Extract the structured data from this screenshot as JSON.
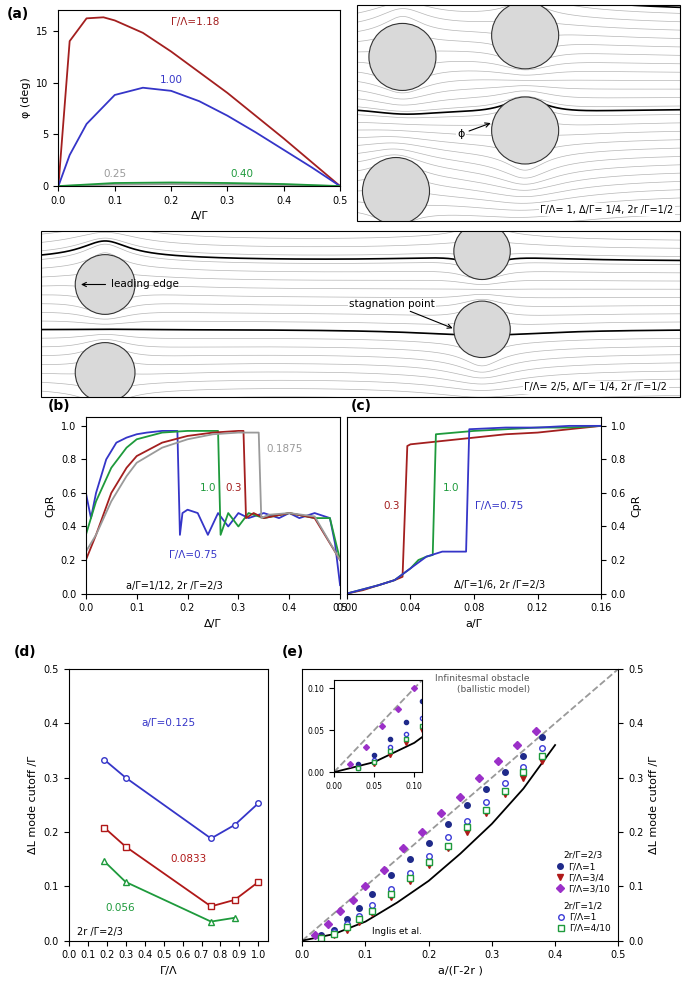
{
  "chart_data": [
    {
      "panel": "(a)",
      "type": "line",
      "x_label": "Δ/Γ",
      "y_label": "φ (deg)",
      "xlim": [
        0,
        0.5
      ],
      "ylim": [
        0,
        17
      ],
      "xticks": [
        {
          "value": 0,
          "label": "0.0"
        },
        {
          "value": 0.1,
          "label": "0.1"
        },
        {
          "value": 0.2,
          "label": "0.2"
        },
        {
          "value": 0.3,
          "label": "0.3"
        },
        {
          "value": 0.4,
          "label": "0.4"
        },
        {
          "value": 0.5,
          "label": "0.5"
        }
      ],
      "yticks": [
        0,
        5,
        10,
        15
      ],
      "series": [
        {
          "name": "Γ/Λ=1.18",
          "color": "#a31f1f",
          "x": [
            0,
            0.02,
            0.05,
            0.08,
            0.1,
            0.15,
            0.2,
            0.25,
            0.3,
            0.35,
            0.4,
            0.45,
            0.5
          ],
          "values": [
            0,
            14,
            16.2,
            16.3,
            16,
            14.8,
            13,
            11,
            9,
            6.8,
            4.6,
            2.3,
            0
          ]
        },
        {
          "name": "1.00",
          "color": "#3535c8",
          "x": [
            0,
            0.02,
            0.05,
            0.1,
            0.15,
            0.2,
            0.25,
            0.3,
            0.35,
            0.4,
            0.45,
            0.5
          ],
          "values": [
            0,
            3,
            6,
            8.8,
            9.5,
            9.2,
            8.2,
            6.8,
            5.2,
            3.5,
            1.8,
            0
          ]
        },
        {
          "name": "0.25",
          "color": "#9a9a9a",
          "x": [
            0,
            0.1,
            0.2,
            0.3,
            0.4,
            0.5
          ],
          "values": [
            0,
            0.15,
            0.2,
            0.15,
            0.1,
            0
          ]
        },
        {
          "name": "0.40",
          "color": "#1e9a3c",
          "x": [
            0,
            0.1,
            0.2,
            0.3,
            0.4,
            0.5
          ],
          "values": [
            0,
            0.3,
            0.35,
            0.3,
            0.2,
            0
          ]
        }
      ]
    },
    {
      "panel": "(b)",
      "type": "line",
      "x_label": "Δ/Γ",
      "y_label": "CpR",
      "xlim": [
        0,
        0.5
      ],
      "ylim": [
        0,
        1.05
      ],
      "xticks": [
        {
          "value": 0,
          "label": "0.0"
        },
        {
          "value": 0.1,
          "label": "0.1"
        },
        {
          "value": 0.2,
          "label": "0.2"
        },
        {
          "value": 0.3,
          "label": "0.3"
        },
        {
          "value": 0.4,
          "label": "0.4"
        },
        {
          "value": 0.5,
          "label": "0.5"
        }
      ],
      "yticks": [
        {
          "value": 0,
          "label": "0.0"
        },
        {
          "value": 0.2,
          "label": "0.2"
        },
        {
          "value": 0.4,
          "label": "0.4"
        },
        {
          "value": 0.6,
          "label": "0.6"
        },
        {
          "value": 0.8,
          "label": "0.8"
        },
        {
          "value": 1.0,
          "label": "1.0"
        }
      ],
      "annotations": [
        "a/Γ=1/12, 2r /Γ=2/3"
      ],
      "series": [
        {
          "name": "Γ/Λ=0.75",
          "color": "#3535c8",
          "x": [
            0,
            0.01,
            0.02,
            0.04,
            0.06,
            0.08,
            0.1,
            0.12,
            0.15,
            0.18,
            0.185,
            0.19,
            0.2,
            0.22,
            0.24,
            0.26,
            0.28,
            0.3,
            0.32,
            0.35,
            0.38,
            0.4,
            0.42,
            0.45,
            0.48,
            0.49,
            0.5
          ],
          "values": [
            0.6,
            0.45,
            0.6,
            0.8,
            0.9,
            0.93,
            0.95,
            0.96,
            0.97,
            0.97,
            0.35,
            0.48,
            0.5,
            0.48,
            0.35,
            0.48,
            0.4,
            0.48,
            0.45,
            0.48,
            0.45,
            0.48,
            0.45,
            0.48,
            0.45,
            0.3,
            0.05
          ]
        },
        {
          "name": "1.0",
          "color": "#1e9a3c",
          "x": [
            0,
            0.02,
            0.05,
            0.08,
            0.1,
            0.15,
            0.2,
            0.25,
            0.26,
            0.265,
            0.28,
            0.3,
            0.32,
            0.35,
            0.4,
            0.45,
            0.48,
            0.5
          ],
          "values": [
            0.35,
            0.55,
            0.75,
            0.87,
            0.92,
            0.96,
            0.97,
            0.97,
            0.97,
            0.35,
            0.48,
            0.4,
            0.48,
            0.45,
            0.48,
            0.45,
            0.45,
            0.2
          ]
        },
        {
          "name": "0.3",
          "color": "#a31f1f",
          "x": [
            0,
            0.02,
            0.05,
            0.08,
            0.1,
            0.15,
            0.2,
            0.25,
            0.3,
            0.31,
            0.315,
            0.33,
            0.35,
            0.4,
            0.45,
            0.5
          ],
          "values": [
            0.2,
            0.35,
            0.6,
            0.75,
            0.82,
            0.9,
            0.94,
            0.96,
            0.97,
            0.97,
            0.45,
            0.48,
            0.45,
            0.48,
            0.45,
            0.2
          ]
        },
        {
          "name": "0.1875",
          "color": "#9a9a9a",
          "x": [
            0,
            0.02,
            0.05,
            0.08,
            0.1,
            0.15,
            0.2,
            0.25,
            0.3,
            0.34,
            0.345,
            0.36,
            0.4,
            0.45,
            0.5
          ],
          "values": [
            0.25,
            0.35,
            0.55,
            0.7,
            0.78,
            0.87,
            0.92,
            0.95,
            0.96,
            0.96,
            0.45,
            0.47,
            0.48,
            0.46,
            0.2
          ]
        }
      ]
    },
    {
      "panel": "(c)",
      "type": "line",
      "x_label": "a/Γ",
      "y_label": "CpR",
      "xlim": [
        0,
        0.16
      ],
      "ylim": [
        0,
        1.05
      ],
      "xticks": [
        {
          "value": 0,
          "label": "0.00"
        },
        {
          "value": 0.04,
          "label": "0.04"
        },
        {
          "value": 0.08,
          "label": "0.08"
        },
        {
          "value": 0.12,
          "label": "0.12"
        },
        {
          "value": 0.16,
          "label": "0.16"
        }
      ],
      "yticks": [
        {
          "value": 0,
          "label": "0.0"
        },
        {
          "value": 0.2,
          "label": "0.2"
        },
        {
          "value": 0.4,
          "label": "0.4"
        },
        {
          "value": 0.6,
          "label": "0.6"
        },
        {
          "value": 0.8,
          "label": "0.8"
        },
        {
          "value": 1.0,
          "label": "1.0"
        }
      ],
      "annotations": [
        "Δ/Γ=1/6, 2r /Γ=2/3"
      ],
      "series": [
        {
          "name": "0.3",
          "color": "#a31f1f",
          "x": [
            0,
            0.01,
            0.02,
            0.03,
            0.035,
            0.038,
            0.04,
            0.06,
            0.08,
            0.1,
            0.12,
            0.14,
            0.16
          ],
          "values": [
            0,
            0.02,
            0.05,
            0.08,
            0.1,
            0.88,
            0.89,
            0.91,
            0.93,
            0.95,
            0.96,
            0.98,
            1.0
          ]
        },
        {
          "name": "1.0",
          "color": "#1e9a3c",
          "x": [
            0,
            0.02,
            0.03,
            0.04,
            0.045,
            0.05,
            0.054,
            0.056,
            0.08,
            0.1,
            0.12,
            0.14,
            0.16
          ],
          "values": [
            0,
            0.05,
            0.08,
            0.15,
            0.2,
            0.22,
            0.23,
            0.95,
            0.97,
            0.98,
            0.99,
            0.99,
            1.0
          ]
        },
        {
          "name": "Γ/Λ=0.75",
          "color": "#3535c8",
          "x": [
            0,
            0.02,
            0.03,
            0.04,
            0.05,
            0.06,
            0.07,
            0.075,
            0.077,
            0.1,
            0.12,
            0.14,
            0.16
          ],
          "values": [
            0,
            0.05,
            0.08,
            0.15,
            0.22,
            0.25,
            0.25,
            0.25,
            0.98,
            0.99,
            0.99,
            1.0,
            1.0
          ]
        }
      ]
    },
    {
      "panel": "(d)",
      "type": "line",
      "x_label": "Γ/Λ",
      "y_label": "ΔL mode cutoff /Γ",
      "xlim": [
        0,
        1.05
      ],
      "ylim": [
        0,
        0.5
      ],
      "xticks": [
        {
          "value": 0,
          "label": "0.0"
        },
        {
          "value": 0.1,
          "label": "0.1"
        },
        {
          "value": 0.2,
          "label": "0.2"
        },
        {
          "value": 0.3,
          "label": "0.3"
        },
        {
          "value": 0.4,
          "label": "0.4"
        },
        {
          "value": 0.5,
          "label": "0.5"
        },
        {
          "value": 0.6,
          "label": "0.6"
        },
        {
          "value": 0.7,
          "label": "0.7"
        },
        {
          "value": 0.8,
          "label": "0.8"
        },
        {
          "value": 0.9,
          "label": "0.9"
        },
        {
          "value": 1.0,
          "label": "1.0"
        }
      ],
      "yticks": [
        {
          "value": 0,
          "label": "0.0"
        },
        {
          "value": 0.1,
          "label": "0.1"
        },
        {
          "value": 0.2,
          "label": "0.2"
        },
        {
          "value": 0.3,
          "label": "0.3"
        },
        {
          "value": 0.4,
          "label": "0.4"
        },
        {
          "value": 0.5,
          "label": "0.5"
        }
      ],
      "annotations": [
        "2r /Γ=2/3"
      ],
      "series": [
        {
          "name": "a/Γ=0.125",
          "color": "#3535c8",
          "marker": "open_circle",
          "x": [
            0.1875,
            0.3,
            0.75,
            0.875,
            1.0
          ],
          "values": [
            0.333,
            0.3,
            0.188,
            0.213,
            0.253
          ]
        },
        {
          "name": "0.0833",
          "color": "#b01818",
          "marker": "open_square",
          "x": [
            0.1875,
            0.3,
            0.75,
            0.875,
            1.0
          ],
          "values": [
            0.208,
            0.173,
            0.063,
            0.075,
            0.108
          ]
        },
        {
          "name": "0.056",
          "color": "#1e9a3c",
          "marker": "open_triangle",
          "x": [
            0.1875,
            0.3,
            0.75,
            0.875
          ],
          "values": [
            0.146,
            0.108,
            0.035,
            0.042
          ]
        }
      ]
    },
    {
      "panel": "(e)",
      "type": "scatter",
      "x_label": "a/(Γ-2r )",
      "y_label": "ΔL mode cutoff /Γ",
      "xlim": [
        0,
        0.5
      ],
      "ylim": [
        0,
        0.5
      ],
      "legend": "lower right",
      "xticks": [
        {
          "value": 0,
          "label": "0.0"
        },
        {
          "value": 0.1,
          "label": "0.1"
        },
        {
          "value": 0.2,
          "label": "0.2"
        },
        {
          "value": 0.3,
          "label": "0.3"
        },
        {
          "value": 0.4,
          "label": "0.4"
        },
        {
          "value": 0.5,
          "label": "0.5"
        }
      ],
      "yticks": [
        {
          "value": 0,
          "label": "0.0"
        },
        {
          "value": 0.1,
          "label": "0.1"
        },
        {
          "value": 0.2,
          "label": "0.2"
        },
        {
          "value": 0.3,
          "label": "0.3"
        },
        {
          "value": 0.4,
          "label": "0.4"
        },
        {
          "value": 0.5,
          "label": "0.5"
        }
      ],
      "inset": {
        "xlim": [
          0,
          0.11
        ],
        "ylim": [
          0,
          0.11
        ],
        "xticks": [
          {
            "value": 0,
            "label": "0.00"
          },
          {
            "value": 0.05,
            "label": "0.05"
          },
          {
            "value": 0.1,
            "label": "0.10"
          }
        ],
        "yticks": [
          {
            "value": 0,
            "label": "0.00"
          },
          {
            "value": 0.05,
            "label": "0.05"
          },
          {
            "value": 0.1,
            "label": "0.10"
          }
        ]
      },
      "lines": [
        {
          "name": "Infinitesmal obstacle\n(ballistic model)",
          "color": "#999999",
          "line_style": "dashed",
          "x": [
            0,
            0.5
          ],
          "values": [
            0,
            0.5
          ]
        },
        {
          "name": "Inglis et al.",
          "color": "#000000",
          "line_style": "solid",
          "x": [
            0,
            0.05,
            0.1,
            0.15,
            0.2,
            0.25,
            0.3,
            0.35,
            0.4
          ],
          "values": [
            0,
            0.012,
            0.035,
            0.07,
            0.11,
            0.16,
            0.215,
            0.28,
            0.36
          ]
        }
      ],
      "groups": [
        {
          "title": "2r/Γ=2/3",
          "series": [
            {
              "name": "Γ/Λ=1",
              "color": "#1f2a8a",
              "marker": "filled_circle",
              "x": [
                0.03,
                0.05,
                0.07,
                0.09,
                0.11,
                0.14,
                0.17,
                0.2,
                0.23,
                0.26,
                0.29,
                0.32,
                0.35,
                0.38
              ],
              "values": [
                0.01,
                0.02,
                0.04,
                0.06,
                0.085,
                0.12,
                0.15,
                0.18,
                0.215,
                0.25,
                0.28,
                0.31,
                0.34,
                0.375
              ]
            },
            {
              "name": "Γ/Λ=3/4",
              "color": "#b01818",
              "marker": "filled_triangle_down",
              "x": [
                0.03,
                0.05,
                0.07,
                0.09,
                0.11,
                0.14,
                0.17,
                0.2,
                0.23,
                0.26,
                0.29,
                0.32,
                0.35,
                0.38
              ],
              "values": [
                0.005,
                0.01,
                0.02,
                0.035,
                0.05,
                0.08,
                0.11,
                0.14,
                0.17,
                0.2,
                0.235,
                0.27,
                0.3,
                0.33
              ]
            },
            {
              "name": "Γ/Λ=3/10",
              "color": "#9b30c8",
              "marker": "filled_diamond",
              "x": [
                0.02,
                0.04,
                0.06,
                0.08,
                0.1,
                0.13,
                0.16,
                0.19,
                0.22,
                0.25,
                0.28,
                0.31,
                0.34,
                0.37
              ],
              "values": [
                0.01,
                0.03,
                0.055,
                0.075,
                0.1,
                0.13,
                0.17,
                0.2,
                0.235,
                0.265,
                0.3,
                0.33,
                0.36,
                0.385
              ]
            }
          ]
        },
        {
          "title": "2r/Γ=1/2",
          "series": [
            {
              "name": "Γ/Λ=1",
              "color": "#3b3bd6",
              "marker": "open_circle",
              "x": [
                0.03,
                0.05,
                0.07,
                0.09,
                0.11,
                0.14,
                0.17,
                0.2,
                0.23,
                0.26,
                0.29,
                0.32,
                0.35,
                0.38
              ],
              "values": [
                0.005,
                0.015,
                0.03,
                0.045,
                0.065,
                0.095,
                0.125,
                0.155,
                0.19,
                0.22,
                0.255,
                0.29,
                0.32,
                0.355
              ]
            },
            {
              "name": "Γ/Λ=4/10",
              "color": "#1e9a3c",
              "marker": "open_square",
              "x": [
                0.03,
                0.05,
                0.07,
                0.09,
                0.11,
                0.14,
                0.17,
                0.2,
                0.23,
                0.26,
                0.29,
                0.32,
                0.35,
                0.38
              ],
              "values": [
                0.005,
                0.012,
                0.025,
                0.04,
                0.055,
                0.085,
                0.115,
                0.145,
                0.175,
                0.21,
                0.24,
                0.275,
                0.31,
                0.34
              ]
            }
          ]
        }
      ]
    }
  ],
  "diagrams": [
    {
      "caption": "Γ/Λ= 1, Δ/Γ= 1/4, 2r /Γ=1/2",
      "labels": [
        "ϕ"
      ]
    },
    {
      "caption": "Γ/Λ= 2/5, Δ/Γ= 1/4, 2r /Γ=1/2",
      "labels": [
        "leading edge",
        "stagnation point"
      ]
    }
  ]
}
